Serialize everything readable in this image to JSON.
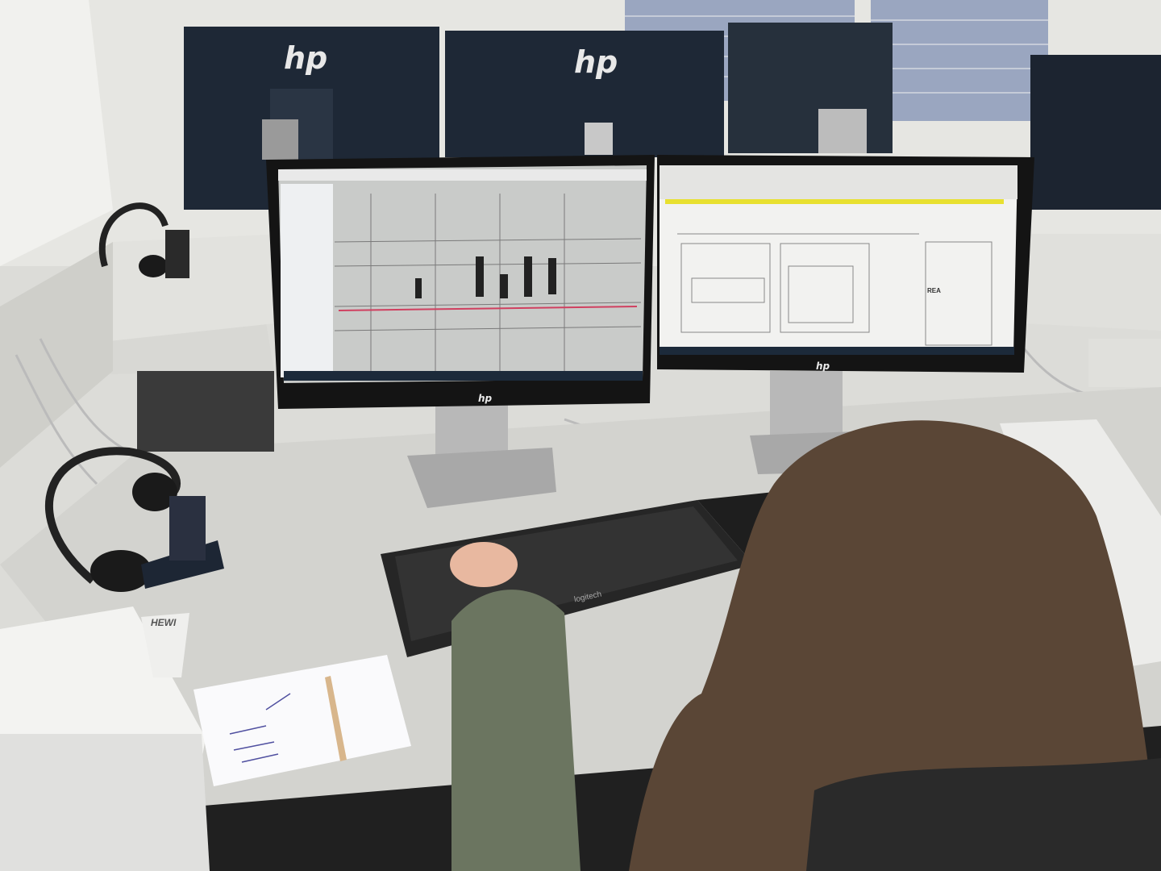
{
  "scene": {
    "description_tags": [
      "office",
      "workstation",
      "dual-monitor",
      "cad-software"
    ],
    "brand_logos": {
      "monitor": "hp",
      "keyboard": "logitech",
      "binder": "HEWI",
      "title_block": "REA"
    },
    "colors": {
      "wall": "#e4e4e0",
      "desk": "#d4d4d0",
      "monitor_back": "#1e2836",
      "bezel": "#141414",
      "hair": "#5a4636",
      "jacket": "#6b7560",
      "keyboard": "#2a2a2a"
    }
  }
}
